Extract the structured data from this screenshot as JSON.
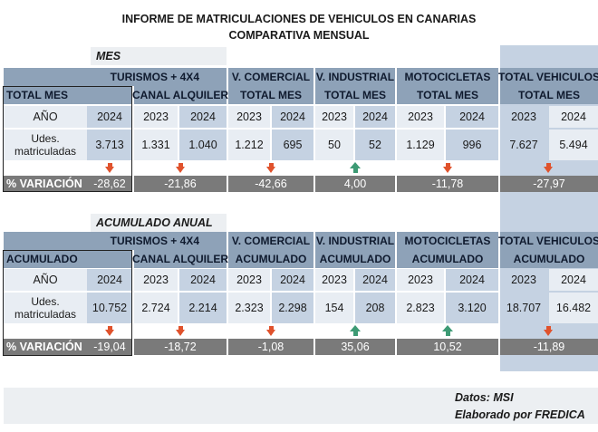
{
  "report": {
    "title_line1": "INFORME DE MATRICULACIONES DE VEHICULOS EN CANARIAS",
    "title_line2": "COMPARATIVA MENSUAL"
  },
  "sections": {
    "mes": {
      "title": "MES",
      "headers": {
        "turismos": "TURISMOS + 4X4",
        "first_label": "TOTAL MES",
        "canal": "CANAL ALQUILER",
        "comercial_1": "V. COMERCIAL",
        "comercial_2": "TOTAL MES",
        "industrial_1": "V. INDUSTRIAL",
        "industrial_2": "TOTAL MES",
        "moto_1": "MOTOCICLETAS",
        "moto_2": "TOTAL MES",
        "total_1": "TOTAL VEHICULOS",
        "total_2": "TOTAL MES"
      },
      "year_label": "AÑO",
      "units_label_1": "Udes.",
      "units_label_2": "matriculadas",
      "variation_label": "% VARIACIÓN",
      "groups": [
        {
          "years": [
            "2024"
          ],
          "values": [
            "3.713"
          ],
          "trend": "down",
          "variation": "-28,62"
        },
        {
          "years": [
            "2023",
            "2024"
          ],
          "values": [
            "1.331",
            "1.040"
          ],
          "trend": "down",
          "variation": "-21,86"
        },
        {
          "years": [
            "2023",
            "2024"
          ],
          "values": [
            "1.212",
            "695"
          ],
          "trend": "down",
          "variation": "-42,66"
        },
        {
          "years": [
            "2023",
            "2024"
          ],
          "values": [
            "50",
            "52"
          ],
          "trend": "up",
          "variation": "4,00"
        },
        {
          "years": [
            "2023",
            "2024"
          ],
          "values": [
            "1.129",
            "996"
          ],
          "trend": "down",
          "variation": "-11,78"
        },
        {
          "years": [
            "2023",
            "2024"
          ],
          "values": [
            "7.627",
            "5.494"
          ],
          "trend": "down",
          "variation": "-27,97"
        }
      ]
    },
    "anual": {
      "title": "ACUMULADO ANUAL",
      "headers": {
        "turismos": "TURISMOS + 4X4",
        "first_label": "ACUMULADO",
        "canal": "CANAL ALQUILER",
        "comercial_1": "V. COMERCIAL",
        "comercial_2": "ACUMULADO",
        "industrial_1": "V. INDUSTRIAL",
        "industrial_2": "ACUMULADO",
        "moto_1": "MOTOCICLETAS",
        "moto_2": "ACUMULADO",
        "total_1": "TOTAL VEHICULOS",
        "total_2": "ACUMULADO"
      },
      "year_label": "AÑO",
      "units_label_1": "Udes.",
      "units_label_2": "matriculadas",
      "variation_label": "% VARIACIÓN",
      "groups": [
        {
          "years": [
            "2024"
          ],
          "values": [
            "10.752"
          ],
          "trend": "down",
          "variation": "-19,04"
        },
        {
          "years": [
            "2023",
            "2024"
          ],
          "values": [
            "2.724",
            "2.214"
          ],
          "trend": "down",
          "variation": "-18,72"
        },
        {
          "years": [
            "2023",
            "2024"
          ],
          "values": [
            "2.323",
            "2.298"
          ],
          "trend": "down",
          "variation": "-1,08"
        },
        {
          "years": [
            "2023",
            "2024"
          ],
          "values": [
            "154",
            "208"
          ],
          "trend": "up",
          "variation": "35,06"
        },
        {
          "years": [
            "2023",
            "2024"
          ],
          "values": [
            "2.823",
            "3.120"
          ],
          "trend": "up",
          "variation": "10,52"
        },
        {
          "years": [
            "2023",
            "2024"
          ],
          "values": [
            "18.707",
            "16.482"
          ],
          "trend": "down",
          "variation": "-11,89"
        }
      ]
    }
  },
  "footer": {
    "source": "Datos: MSI",
    "author": "Elaborado por  FREDICA"
  }
}
